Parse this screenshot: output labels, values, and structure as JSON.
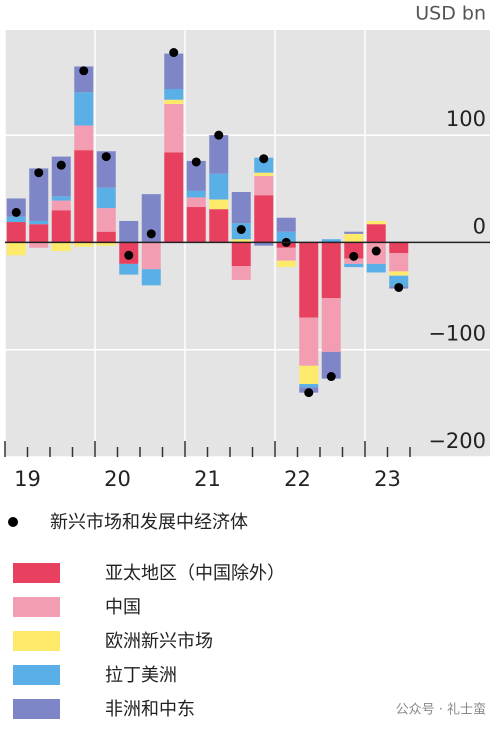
{
  "chart_data": {
    "type": "bar",
    "stacked": true,
    "unit_label": "USD bn",
    "categories": [
      null,
      null,
      null,
      null,
      null,
      null,
      null,
      null,
      null,
      null,
      null,
      null,
      null,
      null,
      null,
      null,
      null,
      null
    ],
    "year_labels": [
      "19",
      "20",
      "21",
      "22",
      "23"
    ],
    "series": [
      {
        "name": "亚太地区（中国除外）",
        "color": "#e8415f",
        "values": [
          19,
          17,
          30,
          86,
          10,
          -20,
          0,
          84,
          33,
          31,
          -22,
          44,
          -5,
          -70,
          -52,
          -15,
          17,
          -10
        ]
      },
      {
        "name": "中国",
        "color": "#f29db1",
        "values": [
          0,
          -5,
          9,
          23,
          22,
          0,
          -25,
          45,
          9,
          0,
          -13,
          18,
          -12,
          -45,
          -50,
          -5,
          -20,
          -17
        ]
      },
      {
        "name": "欧洲新兴市场",
        "color": "#fde96a",
        "values": [
          -12,
          0,
          -8,
          -4,
          -3,
          0,
          0,
          4,
          0,
          9,
          3,
          3,
          -6,
          -17,
          0,
          8,
          3,
          -4
        ]
      },
      {
        "name": "拉丁美洲",
        "color": "#5aafe6",
        "values": [
          5,
          3,
          4,
          31,
          19,
          -10,
          -15,
          10,
          6,
          24,
          15,
          14,
          10,
          -3,
          3,
          -3,
          -8,
          -10
        ]
      },
      {
        "name": "非洲和中东",
        "color": "#7f86c8",
        "values": [
          17,
          49,
          37,
          24,
          34,
          20,
          45,
          33,
          28,
          36,
          29,
          -3,
          13,
          -5,
          -25,
          2,
          0,
          -2
        ]
      }
    ],
    "totals": {
      "name": "新兴市场和发展中经济体",
      "color": "#000000",
      "values": [
        28,
        65,
        72,
        160,
        80,
        -12,
        8,
        177,
        75,
        100,
        12,
        78,
        0,
        -140,
        -125,
        -13,
        -8,
        -42
      ]
    },
    "ylim": [
      -200,
      198
    ],
    "yticks": [
      {
        "value": -200,
        "label": "−200"
      },
      {
        "value": -100,
        "label": "−100"
      },
      0,
      100
    ],
    "grid": true,
    "watermark": "公众号 · 礼士蛮"
  }
}
